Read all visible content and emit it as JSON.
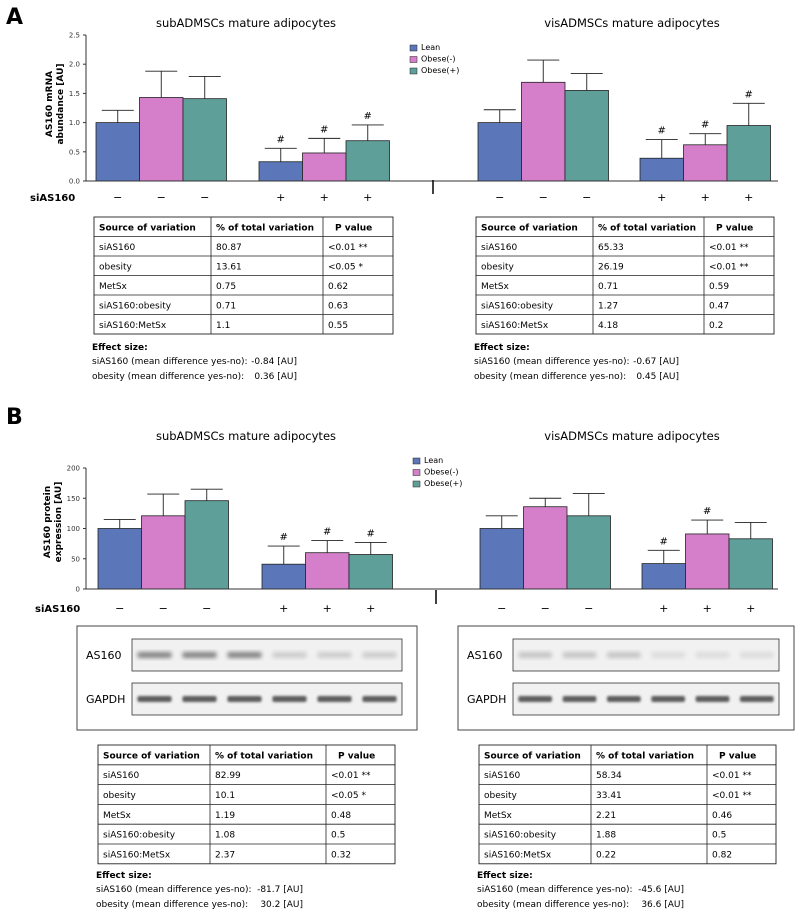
{
  "colors": {
    "lean": "#5b77b9",
    "obese_minus": "#d57fcb",
    "obese_plus": "#5f9f9a",
    "error": "#222222"
  },
  "panels": [
    {
      "label": "A",
      "siRNA_label": "siAS160",
      "chart_data": {
        "type": "bar",
        "ylabel_lines": [
          "AS160 mRNA",
          "abundance [AU]"
        ],
        "ylim": [
          0,
          2.5
        ],
        "yticks": [
          "0.0",
          "0.5",
          "1.0",
          "1.5",
          "2.0",
          "2.5"
        ],
        "ytick_values": [
          0,
          0.5,
          1.0,
          1.5,
          2.0,
          2.5
        ],
        "legend": [
          "Lean",
          "Obese(-)",
          "Obese(+)"
        ],
        "subplots": [
          {
            "title": "subADMSCs mature adipocytes",
            "groups": [
              {
                "si": "−",
                "values": [
                  1.0,
                  1.43,
                  1.41
                ],
                "errors": [
                  1.21,
                  1.88,
                  1.79
                ],
                "marks": [
                  "",
                  "",
                  ""
                ]
              },
              {
                "si": "+",
                "values": [
                  0.33,
                  0.48,
                  0.69
                ],
                "errors": [
                  0.56,
                  0.73,
                  0.96
                ],
                "marks": [
                  "#",
                  "#",
                  "#"
                ]
              }
            ]
          },
          {
            "title": "visADMSCs mature adipocytes",
            "groups": [
              {
                "si": "−",
                "values": [
                  1.0,
                  1.69,
                  1.55
                ],
                "errors": [
                  1.22,
                  2.07,
                  1.84
                ],
                "marks": [
                  "",
                  "",
                  ""
                ]
              },
              {
                "si": "+",
                "values": [
                  0.39,
                  0.62,
                  0.95
                ],
                "errors": [
                  0.71,
                  0.81,
                  1.33
                ],
                "marks": [
                  "#",
                  "#",
                  "#"
                ]
              }
            ]
          }
        ]
      },
      "tables": [
        {
          "header": [
            "Source of variation",
            "% of total variation",
            "P value"
          ],
          "rows": [
            [
              "siAS160",
              "80.87",
              "<0.01 **"
            ],
            [
              "obesity",
              "13.61",
              "<0.05 *"
            ],
            [
              "MetSx",
              "0.75",
              "0.62"
            ],
            [
              "siAS160:obesity",
              "0.71",
              "0.63"
            ],
            [
              "siAS160:MetSx",
              "1.1",
              "0.55"
            ]
          ],
          "effect_title": "Effect size:",
          "effects": [
            [
              "siAS160 (mean difference yes-no):",
              "-0.84 [AU]"
            ],
            [
              "obesity (mean difference yes-no):",
              "0.36 [AU]"
            ]
          ]
        },
        {
          "header": [
            "Source of variation",
            "% of total variation",
            "P value"
          ],
          "rows": [
            [
              "siAS160",
              "65.33",
              "<0.01 **"
            ],
            [
              "obesity",
              "26.19",
              "<0.01 **"
            ],
            [
              "MetSx",
              "0.71",
              "0.59"
            ],
            [
              "siAS160:obesity",
              "1.27",
              "0.47"
            ],
            [
              "siAS160:MetSx",
              "4.18",
              "0.2"
            ]
          ],
          "effect_title": "Effect size:",
          "effects": [
            [
              "siAS160 (mean difference yes-no):",
              "-0.67 [AU]"
            ],
            [
              "obesity (mean difference yes-no):",
              "0.45 [AU]"
            ]
          ]
        }
      ]
    },
    {
      "label": "B",
      "siRNA_label": "siAS160",
      "chart_data": {
        "type": "bar",
        "ylabel_lines": [
          "AS160 protein",
          "expression [AU]"
        ],
        "ylim": [
          0,
          200
        ],
        "yticks": [
          "0",
          "50",
          "100",
          "150",
          "200"
        ],
        "ytick_values": [
          0,
          50,
          100,
          150,
          200
        ],
        "legend": [
          "Lean",
          "Obese(-)",
          "Obese(+)"
        ],
        "subplots": [
          {
            "title": "subADMSCs mature adipocytes",
            "groups": [
              {
                "si": "−",
                "values": [
                  100,
                  121,
                  146
                ],
                "errors": [
                  115,
                  157,
                  165
                ],
                "marks": [
                  "",
                  "",
                  ""
                ]
              },
              {
                "si": "+",
                "values": [
                  41,
                  60,
                  57
                ],
                "errors": [
                  71,
                  80,
                  77
                ],
                "marks": [
                  "#",
                  "#",
                  "#"
                ]
              }
            ]
          },
          {
            "title": "visADMSCs mature adipocytes",
            "groups": [
              {
                "si": "−",
                "values": [
                  100,
                  136,
                  121
                ],
                "errors": [
                  121,
                  150,
                  158
                ],
                "marks": [
                  "",
                  "",
                  ""
                ]
              },
              {
                "si": "+",
                "values": [
                  42,
                  91,
                  83
                ],
                "errors": [
                  64,
                  114,
                  110
                ],
                "marks": [
                  "#",
                  "#",
                  ""
                ]
              }
            ]
          }
        ]
      },
      "blots": [
        {
          "bands": [
            "AS160",
            "GAPDH"
          ]
        },
        {
          "bands": [
            "AS160",
            "GAPDH"
          ]
        }
      ],
      "tables": [
        {
          "header": [
            "Source of variation",
            "% of total variation",
            "P value"
          ],
          "rows": [
            [
              "siAS160",
              "82.99",
              "<0.01 **"
            ],
            [
              "obesity",
              "10.1",
              "<0.05 *"
            ],
            [
              "MetSx",
              "1.19",
              "0.48"
            ],
            [
              "siAS160:obesity",
              "1.08",
              "0.5"
            ],
            [
              "siAS160:MetSx",
              "2.37",
              "0.32"
            ]
          ],
          "effect_title": "Effect size:",
          "effects": [
            [
              "siAS160 (mean difference yes-no):",
              "-81.7 [AU]"
            ],
            [
              "obesity (mean difference yes-no):",
              "30.2 [AU]"
            ]
          ]
        },
        {
          "header": [
            "Source of variation",
            "% of total variation",
            "P value"
          ],
          "rows": [
            [
              "siAS160",
              "58.34",
              "<0.01 **"
            ],
            [
              "obesity",
              "33.41",
              "<0.01 **"
            ],
            [
              "MetSx",
              "2.21",
              "0.46"
            ],
            [
              "siAS160:obesity",
              "1.88",
              "0.5"
            ],
            [
              "siAS160:MetSx",
              "0.22",
              "0.82"
            ]
          ],
          "effect_title": "Effect size:",
          "effects": [
            [
              "siAS160 (mean difference yes-no):",
              "-45.6 [AU]"
            ],
            [
              "obesity (mean difference yes-no):",
              "36.6 [AU]"
            ]
          ]
        }
      ]
    }
  ]
}
